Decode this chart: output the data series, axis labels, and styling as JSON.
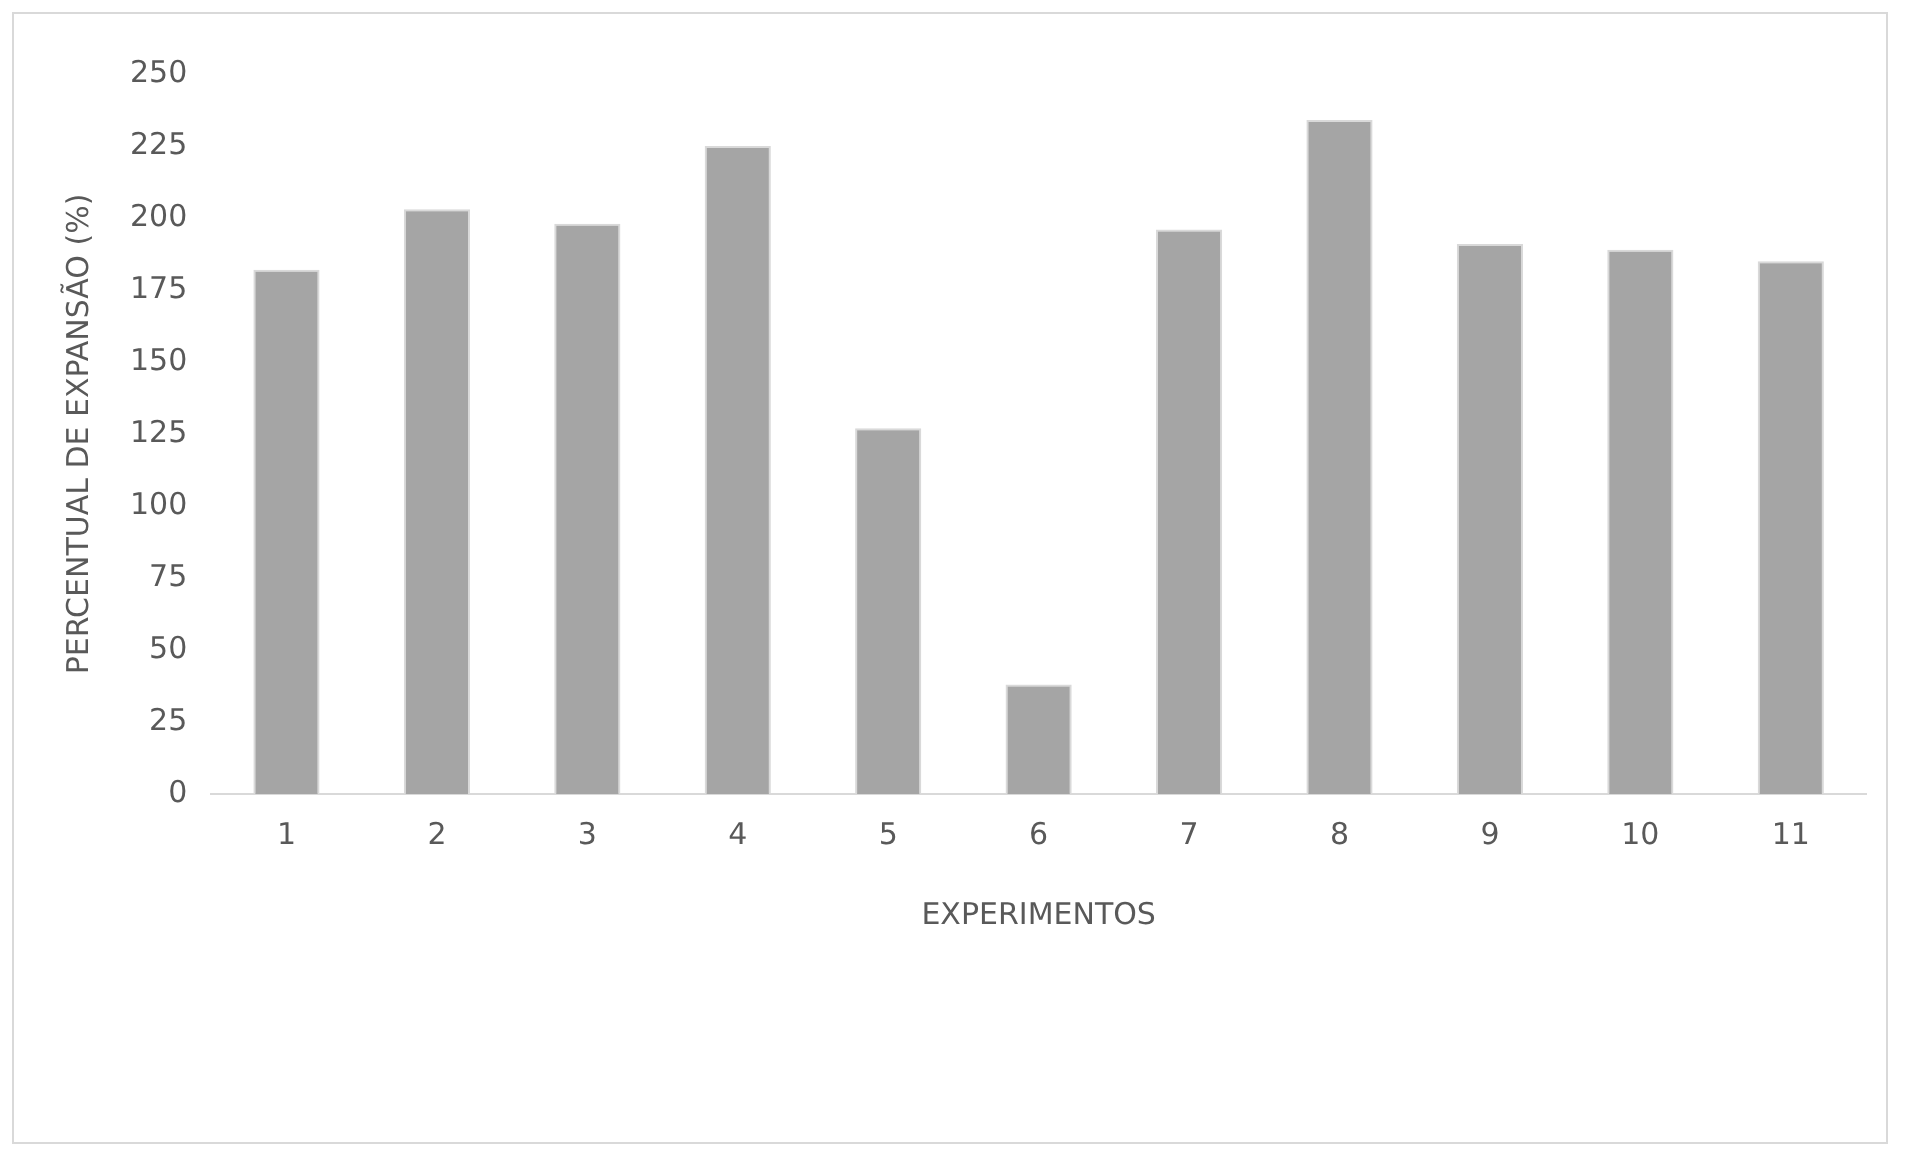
{
  "chart_data": {
    "type": "bar",
    "xlabel": "EXPERIMENTOS",
    "ylabel": "PERCENTUAL DE EXPANSÃO (%)",
    "categories": [
      "1",
      "2",
      "3",
      "4",
      "5",
      "6",
      "7",
      "8",
      "9",
      "10",
      "11"
    ],
    "values": [
      182,
      203,
      198,
      225,
      127,
      38,
      196,
      234,
      191,
      189,
      185
    ],
    "color": "#a5a5a5",
    "ylim": [
      0,
      250
    ],
    "yticks": [
      0,
      25,
      50,
      75,
      100,
      125,
      150,
      175,
      200,
      225,
      250
    ],
    "grid": false,
    "legend": false
  }
}
